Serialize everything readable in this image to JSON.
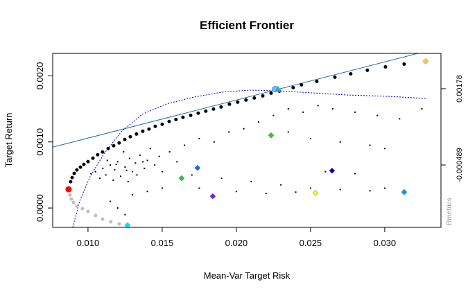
{
  "chart_data": {
    "type": "scatter",
    "title": "Efficient Frontier",
    "xlabel": "Mean-Var Target Risk",
    "ylabel": "Target Return",
    "side_label": "Rmetrics",
    "grid": false,
    "xlim": [
      0.00762,
      0.03379
    ],
    "ylim": [
      -0.000293,
      0.00234
    ],
    "y2lim": [
      -0.002345,
      0.002832
    ],
    "xticks": [
      {
        "value": 0.01,
        "label": "0.010"
      },
      {
        "value": 0.015,
        "label": "0.015"
      },
      {
        "value": 0.02,
        "label": "0.020"
      },
      {
        "value": 0.025,
        "label": "0.025"
      },
      {
        "value": 0.03,
        "label": "0.030"
      }
    ],
    "yticks": [
      {
        "value": 0,
        "label": "0.0000"
      },
      {
        "value": 0.001,
        "label": "0.0010"
      },
      {
        "value": 0.002,
        "label": "0.0020"
      }
    ],
    "y2ticks": [
      0.00178,
      -0.000489
    ],
    "series": [
      {
        "marker": "dot",
        "color": "#000000",
        "x": [
          0.0105,
          0.011,
          0.0112,
          0.0115,
          0.0118,
          0.012,
          0.0122,
          0.0125,
          0.0128,
          0.013,
          0.0132,
          0.0135,
          0.0138,
          0.014,
          0.0108,
          0.0113,
          0.0117,
          0.0124,
          0.0127,
          0.0133,
          0.0142,
          0.0145,
          0.0148,
          0.015,
          0.0155,
          0.016,
          0.0102,
          0.0119,
          0.0126,
          0.0137,
          0.0165,
          0.0175,
          0.0185,
          0.0195,
          0.0205,
          0.0215,
          0.0225,
          0.0235,
          0.0245,
          0.0255,
          0.0265,
          0.028,
          0.0295,
          0.031,
          0.0325,
          0.0235,
          0.025,
          0.027,
          0.029,
          0.03,
          0.017,
          0.019,
          0.021,
          0.023,
          0.025,
          0.027,
          0.029,
          0.0175,
          0.02,
          0.022,
          0.024,
          0.026,
          0.028,
          0.03,
          0.0115,
          0.012,
          0.0125,
          0.013,
          0.014,
          0.015
        ],
        "y": [
          0.00055,
          0.0006,
          0.0005,
          0.00065,
          0.00058,
          0.0007,
          0.00048,
          0.00062,
          0.00075,
          0.00055,
          0.00068,
          0.0008,
          0.0006,
          0.00072,
          0.00045,
          0.00072,
          0.00042,
          0.00085,
          0.0004,
          0.0005,
          0.0009,
          0.00065,
          0.00078,
          0.00055,
          0.00085,
          0.0007,
          0.00052,
          0.00066,
          0.00057,
          0.0007,
          0.00095,
          0.00105,
          0.001,
          0.00115,
          0.0012,
          0.0013,
          0.0014,
          0.0015,
          0.00145,
          0.00155,
          0.0015,
          0.00145,
          0.0014,
          0.00135,
          0.0015,
          0.00115,
          0.00105,
          0.001,
          0.00095,
          0.0009,
          0.0005,
          0.00045,
          0.0004,
          0.00035,
          0.0003,
          0.00028,
          0.00026,
          0.0003,
          0.00025,
          0.00022,
          0.00024,
          0.00055,
          0.00052,
          0.0003,
          0.0001,
          0,
          -0.0001,
          0.0002,
          0.00025,
          0.0003
        ]
      },
      {
        "marker": "line",
        "color": "#1f6fa8",
        "x": [
          0.00762,
          0.03224
        ],
        "y": [
          0.000921,
          0.00234
        ]
      },
      {
        "marker": "dotted-line",
        "color": "#0000cc",
        "axis": "y2",
        "x": [
          0.00897,
          0.00944,
          0.01014,
          0.01107,
          0.01224,
          0.01364,
          0.01528,
          0.01715,
          0.01902,
          0.02089,
          0.02276,
          0.02509,
          0.02743,
          0.03023,
          0.0328
        ],
        "y": [
          -0.002345,
          -0.001562,
          -0.00084,
          -0.000159,
          0.000501,
          0.001017,
          0.001326,
          0.001532,
          0.001677,
          0.001739,
          0.001718,
          0.001656,
          0.001594,
          0.001553,
          0.001491
        ]
      },
      {
        "marker": "circle",
        "color": "#bdbdbd",
        "x": [
          0.00878,
          0.00888,
          0.00902,
          0.00925,
          0.00963,
          0.01,
          0.01051,
          0.01098,
          0.01154,
          0.0121
        ],
        "y": [
          0.000199,
          0.000136,
          8.4e-05,
          3.1e-05,
          -1e-05,
          -5.2e-05,
          -0.000115,
          -0.000168,
          -0.000209,
          -0.000241
        ]
      },
      {
        "marker": "circle",
        "color": "#000000",
        "x": [
          0.00883,
          0.00893,
          0.00907,
          0.00925,
          0.00949,
          0.00972,
          0.01,
          0.01033,
          0.01065,
          0.01098,
          0.01136,
          0.01173,
          0.0121,
          0.01248,
          0.01285,
          0.01327,
          0.01369,
          0.01411,
          0.01453,
          0.015,
          0.01547,
          0.01593,
          0.0164,
          0.01692,
          0.01743,
          0.01794,
          0.01846,
          0.01897,
          0.01953,
          0.02009,
          0.02065,
          0.02121,
          0.02178,
          0.02234,
          0.0229,
          0.02383,
          0.02439,
          0.02542,
          0.02664,
          0.02771,
          0.02883,
          0.03005,
          0.03131
        ],
        "y": [
          0.000398,
          0.000461,
          0.000524,
          0.000576,
          0.000618,
          0.00066,
          0.000702,
          0.000754,
          0.000806,
          0.000848,
          0.0009,
          0.000942,
          0.000984,
          0.001037,
          0.001079,
          0.00112,
          0.001162,
          0.001194,
          0.001236,
          0.001267,
          0.001309,
          0.00134,
          0.001372,
          0.001403,
          0.001435,
          0.001466,
          0.001497,
          0.001529,
          0.001571,
          0.001602,
          0.001634,
          0.001665,
          0.001696,
          0.001738,
          0.00177,
          0.001822,
          0.001864,
          0.001916,
          0.001979,
          0.002031,
          0.002084,
          0.002136,
          0.002178
        ]
      },
      {
        "marker": "big-circle",
        "color": "#ff0000",
        "x": [
          0.00869
        ],
        "y": [
          0.000283
        ]
      },
      {
        "marker": "ring",
        "color": "#6ec6f0",
        "x": [
          0.0226
        ],
        "y": [
          0.0018
        ]
      },
      {
        "marker": "triangle",
        "color": "#3aa0d8",
        "x": [
          0.0228
        ],
        "y": [
          0.0018
        ]
      },
      {
        "marker": "diamond",
        "colors": [
          "#00e5ff",
          "#22cc44",
          "#1a66ff",
          "#7a1aff",
          "#33cc33",
          "#0000cc",
          "#ffff00",
          "#0099ff",
          "#ffcc44"
        ],
        "x": [
          0.01266,
          0.01631,
          0.01738,
          0.01841,
          0.02234,
          0.02645,
          0.02533,
          0.03131,
          0.03276
        ],
        "y": [
          -0.000262,
          0.00045,
          0.000607,
          0.000178,
          0.0011,
          0.000565,
          0.00023,
          0.000241,
          0.00222
        ]
      }
    ]
  }
}
